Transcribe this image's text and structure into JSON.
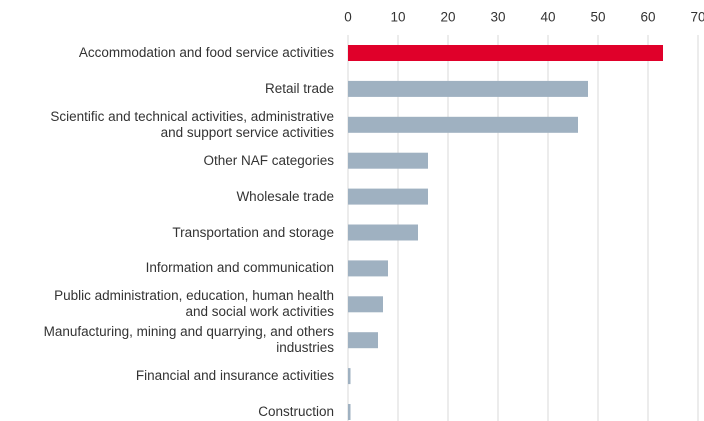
{
  "chart_data": {
    "type": "barh",
    "categories": [
      "Accommodation and food service activities",
      "Retail trade",
      "Scientific and technical activities, administrative\nand support service activities",
      "Other NAF categories",
      "Wholesale trade",
      "Transportation and storage",
      "Information and communication",
      "Public administration, education, human health\nand social work activities",
      "Manufacturing, mining and quarrying, and others\nindustries",
      "Financial and insurance activities",
      "Construction"
    ],
    "values": [
      63,
      48,
      46,
      16,
      16,
      14,
      8,
      7,
      6,
      0.5,
      0.5
    ],
    "colors": [
      "#e0002a",
      "#9fb1c1",
      "#9fb1c1",
      "#9fb1c1",
      "#9fb1c1",
      "#9fb1c1",
      "#9fb1c1",
      "#9fb1c1",
      "#9fb1c1",
      "#9fb1c1",
      "#9fb1c1"
    ],
    "xlim": [
      0,
      70
    ],
    "xticks": [
      0,
      10,
      20,
      30,
      40,
      50,
      60,
      70
    ],
    "grid": true
  }
}
